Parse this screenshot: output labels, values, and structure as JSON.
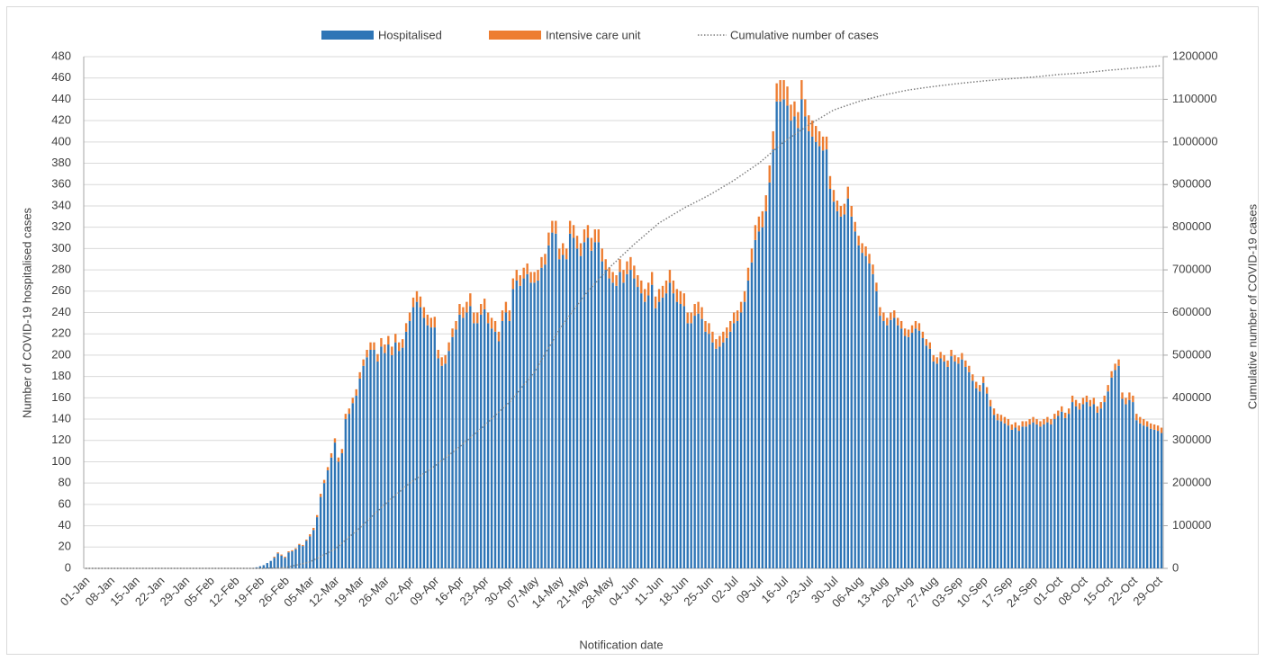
{
  "chart_data": {
    "type": "bar",
    "stacked": true,
    "grid": true,
    "legend_position": "top",
    "x_label": "Notification date",
    "y_label": "Number of COVID-19 hospitalised cases",
    "y2_label": "Cumulative number of COVID-19 cases",
    "ylim": [
      0,
      480
    ],
    "yticks": [
      0,
      20,
      40,
      60,
      80,
      100,
      120,
      140,
      160,
      180,
      200,
      220,
      240,
      260,
      280,
      300,
      320,
      340,
      360,
      380,
      400,
      420,
      440,
      460,
      480
    ],
    "y2lim": [
      0,
      1200000
    ],
    "y2ticks": [
      0,
      100000,
      200000,
      300000,
      400000,
      500000,
      600000,
      700000,
      800000,
      900000,
      1000000,
      1100000,
      1200000
    ],
    "categories": [
      "01-Jan",
      null,
      null,
      null,
      null,
      null,
      null,
      "08-Jan",
      null,
      null,
      null,
      null,
      null,
      null,
      "15-Jan",
      null,
      null,
      null,
      null,
      null,
      null,
      "22-Jan",
      null,
      null,
      null,
      null,
      null,
      null,
      "29-Jan",
      null,
      null,
      null,
      null,
      null,
      null,
      "05-Feb",
      null,
      null,
      null,
      null,
      null,
      null,
      "12-Feb",
      null,
      null,
      null,
      null,
      null,
      null,
      "19-Feb",
      null,
      null,
      null,
      null,
      null,
      null,
      "26-Feb",
      null,
      null,
      null,
      null,
      null,
      null,
      "05-Mar",
      null,
      null,
      null,
      null,
      null,
      null,
      "12-Mar",
      null,
      null,
      null,
      null,
      null,
      null,
      "19-Mar",
      null,
      null,
      null,
      null,
      null,
      null,
      "26-Mar",
      null,
      null,
      null,
      null,
      null,
      null,
      "02-Apr",
      null,
      null,
      null,
      null,
      null,
      null,
      "09-Apr",
      null,
      null,
      null,
      null,
      null,
      null,
      "16-Apr",
      null,
      null,
      null,
      null,
      null,
      null,
      "23-Apr",
      null,
      null,
      null,
      null,
      null,
      null,
      "30-Apr",
      null,
      null,
      null,
      null,
      null,
      null,
      "07-May",
      null,
      null,
      null,
      null,
      null,
      null,
      "14-May",
      null,
      null,
      null,
      null,
      null,
      null,
      "21-May",
      null,
      null,
      null,
      null,
      null,
      null,
      "28-May",
      null,
      null,
      null,
      null,
      null,
      null,
      "04-Jun",
      null,
      null,
      null,
      null,
      null,
      null,
      "11-Jun",
      null,
      null,
      null,
      null,
      null,
      null,
      "18-Jun",
      null,
      null,
      null,
      null,
      null,
      null,
      "25-Jun",
      null,
      null,
      null,
      null,
      null,
      null,
      "02-Jul",
      null,
      null,
      null,
      null,
      null,
      null,
      "09-Jul",
      null,
      null,
      null,
      null,
      null,
      null,
      "16-Jul",
      null,
      null,
      null,
      null,
      null,
      null,
      "23-Jul",
      null,
      null,
      null,
      null,
      null,
      null,
      "30-Jul",
      null,
      null,
      null,
      null,
      null,
      null,
      "06-Aug",
      null,
      null,
      null,
      null,
      null,
      null,
      "13-Aug",
      null,
      null,
      null,
      null,
      null,
      null,
      "20-Aug",
      null,
      null,
      null,
      null,
      null,
      null,
      "27-Aug",
      null,
      null,
      null,
      null,
      null,
      null,
      "03-Sep",
      null,
      null,
      null,
      null,
      null,
      null,
      "10-Sep",
      null,
      null,
      null,
      null,
      null,
      null,
      "17-Sep",
      null,
      null,
      null,
      null,
      null,
      null,
      "24-Sep",
      null,
      null,
      null,
      null,
      null,
      null,
      "01-Oct",
      null,
      null,
      null,
      null,
      null,
      null,
      "08-Oct",
      null,
      null,
      null,
      null,
      null,
      null,
      "15-Oct",
      null,
      null,
      null,
      null,
      null,
      null,
      "22-Oct",
      null,
      null,
      null,
      null,
      null,
      null,
      "29-Oct",
      null
    ],
    "series": [
      {
        "name": "Hospitalised",
        "type": "bar",
        "color": "#2e75b6",
        "values": [
          0,
          0,
          0,
          0,
          0,
          0,
          0,
          0,
          0,
          0,
          0,
          0,
          0,
          0,
          0,
          0,
          0,
          0,
          0,
          0,
          0,
          0,
          0,
          0,
          0,
          0,
          0,
          0,
          0,
          0,
          0,
          0,
          0,
          0,
          0,
          0,
          0,
          0,
          0,
          0,
          0,
          0,
          0,
          0,
          0,
          0,
          0,
          0,
          1,
          2,
          3,
          5,
          7,
          10,
          14,
          12,
          10,
          15,
          16,
          18,
          22,
          21,
          26,
          30,
          36,
          48,
          67,
          80,
          92,
          104,
          118,
          100,
          108,
          140,
          145,
          155,
          162,
          178,
          190,
          198,
          205,
          205,
          194,
          208,
          202,
          210,
          200,
          212,
          204,
          207,
          222,
          232,
          245,
          250,
          245,
          235,
          228,
          226,
          226,
          197,
          190,
          192,
          204,
          217,
          224,
          238,
          235,
          240,
          246,
          230,
          230,
          238,
          243,
          230,
          225,
          222,
          213,
          232,
          240,
          232,
          262,
          270,
          265,
          272,
          276,
          268,
          268,
          270,
          282,
          285,
          303,
          315,
          314,
          290,
          294,
          290,
          314,
          310,
          300,
          293,
          306,
          310,
          298,
          306,
          306,
          288,
          280,
          272,
          268,
          265,
          278,
          268,
          276,
          280,
          272,
          264,
          258,
          250,
          256,
          266,
          244,
          250,
          254,
          258,
          268,
          258,
          250,
          248,
          246,
          230,
          230,
          237,
          239,
          234,
          222,
          220,
          212,
          206,
          208,
          212,
          216,
          222,
          230,
          232,
          240,
          250,
          270,
          287,
          308,
          316,
          320,
          335,
          362,
          393,
          438,
          438,
          440,
          434,
          420,
          424,
          413,
          440,
          424,
          410,
          405,
          400,
          396,
          392,
          393,
          356,
          344,
          335,
          330,
          332,
          347,
          330,
          316,
          303,
          296,
          293,
          286,
          276,
          260,
          237,
          232,
          228,
          233,
          235,
          228,
          225,
          218,
          217,
          221,
          225,
          223,
          216,
          209,
          206,
          194,
          192,
          197,
          194,
          189,
          199,
          194,
          192,
          196,
          189,
          184,
          176,
          169,
          166,
          174,
          164,
          152,
          144,
          139,
          138,
          136,
          134,
          130,
          132,
          129,
          133,
          133,
          135,
          137,
          135,
          133,
          135,
          137,
          135,
          140,
          143,
          147,
          141,
          145,
          156,
          152,
          149,
          154,
          156,
          152,
          154,
          146,
          150,
          156,
          166,
          179,
          186,
          190,
          159,
          154,
          158,
          156,
          139,
          136,
          134,
          133,
          131,
          130,
          129,
          127
        ]
      },
      {
        "name": "Intensive care unit",
        "type": "bar",
        "color": "#ed7d31",
        "values": [
          0,
          0,
          0,
          0,
          0,
          0,
          0,
          0,
          0,
          0,
          0,
          0,
          0,
          0,
          0,
          0,
          0,
          0,
          0,
          0,
          0,
          0,
          0,
          0,
          0,
          0,
          0,
          0,
          0,
          0,
          0,
          0,
          0,
          0,
          0,
          0,
          0,
          0,
          0,
          0,
          0,
          0,
          0,
          0,
          0,
          0,
          0,
          0,
          0,
          0,
          0,
          0,
          0,
          1,
          1,
          1,
          1,
          1,
          1,
          1,
          1,
          1,
          1,
          2,
          2,
          2,
          3,
          3,
          3,
          4,
          4,
          4,
          4,
          5,
          5,
          5,
          6,
          6,
          6,
          7,
          7,
          7,
          7,
          8,
          8,
          8,
          8,
          8,
          8,
          8,
          8,
          8,
          9,
          10,
          10,
          10,
          10,
          9,
          10,
          8,
          8,
          8,
          8,
          8,
          8,
          10,
          10,
          10,
          12,
          10,
          10,
          10,
          10,
          10,
          10,
          10,
          9,
          10,
          10,
          10,
          10,
          10,
          10,
          10,
          10,
          10,
          10,
          10,
          10,
          10,
          12,
          11,
          12,
          10,
          11,
          10,
          12,
          12,
          12,
          12,
          12,
          12,
          12,
          12,
          12,
          12,
          10,
          10,
          10,
          10,
          12,
          12,
          12,
          12,
          12,
          11,
          12,
          12,
          12,
          12,
          11,
          12,
          11,
          12,
          12,
          12,
          12,
          12,
          12,
          10,
          10,
          11,
          11,
          11,
          10,
          10,
          10,
          9,
          10,
          10,
          10,
          10,
          10,
          10,
          10,
          10,
          12,
          13,
          14,
          14,
          15,
          15,
          16,
          17,
          17,
          20,
          18,
          18,
          15,
          14,
          15,
          18,
          16,
          15,
          15,
          15,
          14,
          13,
          12,
          12,
          11,
          10,
          10,
          10,
          11,
          10,
          9,
          9,
          9,
          9,
          9,
          9,
          8,
          8,
          8,
          7,
          7,
          7,
          7,
          7,
          7,
          7,
          7,
          7,
          7,
          6,
          6,
          6,
          6,
          6,
          6,
          6,
          6,
          6,
          6,
          6,
          6,
          6,
          6,
          6,
          6,
          6,
          6,
          6,
          6,
          6,
          6,
          6,
          6,
          6,
          5,
          5,
          5,
          5,
          5,
          5,
          5,
          5,
          5,
          5,
          5,
          5,
          5,
          5,
          5,
          5,
          5,
          6,
          6,
          6,
          6,
          6,
          6,
          6,
          6,
          6,
          6,
          6,
          6,
          6,
          6,
          6,
          6,
          7,
          6,
          6,
          6,
          6,
          5,
          5,
          5,
          5,
          5
        ]
      },
      {
        "name": "Cumulative number of cases",
        "type": "line",
        "axis": "y2",
        "color": "#7f7f7f",
        "values": [
          0,
          0,
          0,
          0,
          0,
          0,
          0,
          0,
          0,
          0,
          0,
          0,
          0,
          0,
          0,
          0,
          0,
          0,
          0,
          0,
          0,
          0,
          0,
          0,
          0,
          0,
          0,
          0,
          0,
          0,
          0,
          0,
          0,
          0,
          0,
          0,
          0,
          0,
          0,
          0,
          0,
          0,
          0,
          0,
          0,
          0,
          0,
          0,
          0,
          100,
          300,
          500,
          700,
          900,
          1100,
          1300,
          1500,
          3400,
          5300,
          7300,
          9200,
          11100,
          13100,
          15000,
          19300,
          23600,
          27900,
          32100,
          36400,
          40700,
          45000,
          52100,
          59300,
          66400,
          73600,
          80700,
          87900,
          95000,
          102900,
          110700,
          118600,
          126400,
          134300,
          142100,
          150000,
          157100,
          164300,
          171400,
          178600,
          185700,
          192900,
          200000,
          205700,
          211400,
          217100,
          222900,
          228600,
          234300,
          240000,
          246400,
          252900,
          259300,
          265700,
          272100,
          278600,
          285000,
          292100,
          299300,
          306400,
          313600,
          320700,
          327900,
          335000,
          342900,
          350700,
          358600,
          366400,
          374300,
          382100,
          390000,
          400000,
          410000,
          420000,
          430000,
          440000,
          450000,
          460000,
          474300,
          488600,
          502900,
          517100,
          531400,
          545700,
          560000,
          571400,
          582900,
          594300,
          605700,
          617100,
          628600,
          640000,
          649300,
          658600,
          667900,
          677100,
          686400,
          695700,
          705000,
          712900,
          720700,
          728600,
          736400,
          744300,
          752100,
          760000,
          767100,
          774300,
          781400,
          788600,
          795700,
          802900,
          810000,
          815000,
          820000,
          825000,
          830000,
          835000,
          840000,
          845000,
          849300,
          853600,
          857900,
          862100,
          866400,
          870700,
          875000,
          880000,
          885000,
          890000,
          895000,
          900000,
          905000,
          910000,
          915700,
          921400,
          927100,
          932900,
          938600,
          944300,
          950000,
          957100,
          964300,
          971400,
          978600,
          985700,
          992900,
          1000000,
          1005700,
          1011400,
          1017100,
          1022900,
          1028600,
          1034300,
          1040000,
          1045000,
          1050000,
          1055000,
          1060000,
          1065000,
          1070000,
          1075000,
          1077900,
          1080700,
          1083600,
          1086400,
          1089300,
          1092100,
          1095000,
          1097100,
          1099300,
          1101400,
          1103600,
          1105700,
          1107900,
          1110000,
          1111700,
          1113400,
          1115100,
          1116900,
          1118600,
          1120300,
          1122000,
          1123100,
          1124300,
          1125400,
          1126600,
          1127700,
          1128900,
          1130000,
          1131000,
          1132000,
          1133000,
          1134000,
          1135000,
          1136000,
          1137000,
          1137900,
          1138700,
          1139600,
          1140400,
          1141300,
          1142100,
          1143000,
          1143700,
          1144400,
          1145100,
          1145900,
          1146600,
          1147300,
          1148000,
          1148600,
          1149100,
          1149700,
          1150300,
          1150900,
          1151400,
          1152000,
          1152900,
          1153700,
          1154600,
          1155400,
          1156300,
          1157100,
          1158000,
          1158600,
          1159100,
          1159700,
          1160300,
          1160900,
          1161400,
          1162000,
          1162900,
          1163700,
          1164600,
          1165400,
          1166300,
          1167100,
          1168000,
          1168700,
          1169400,
          1170100,
          1170900,
          1171600,
          1172300,
          1173000,
          1173700,
          1174400,
          1175100,
          1175900,
          1176600,
          1177300,
          1178000,
          1179000
        ]
      }
    ]
  }
}
